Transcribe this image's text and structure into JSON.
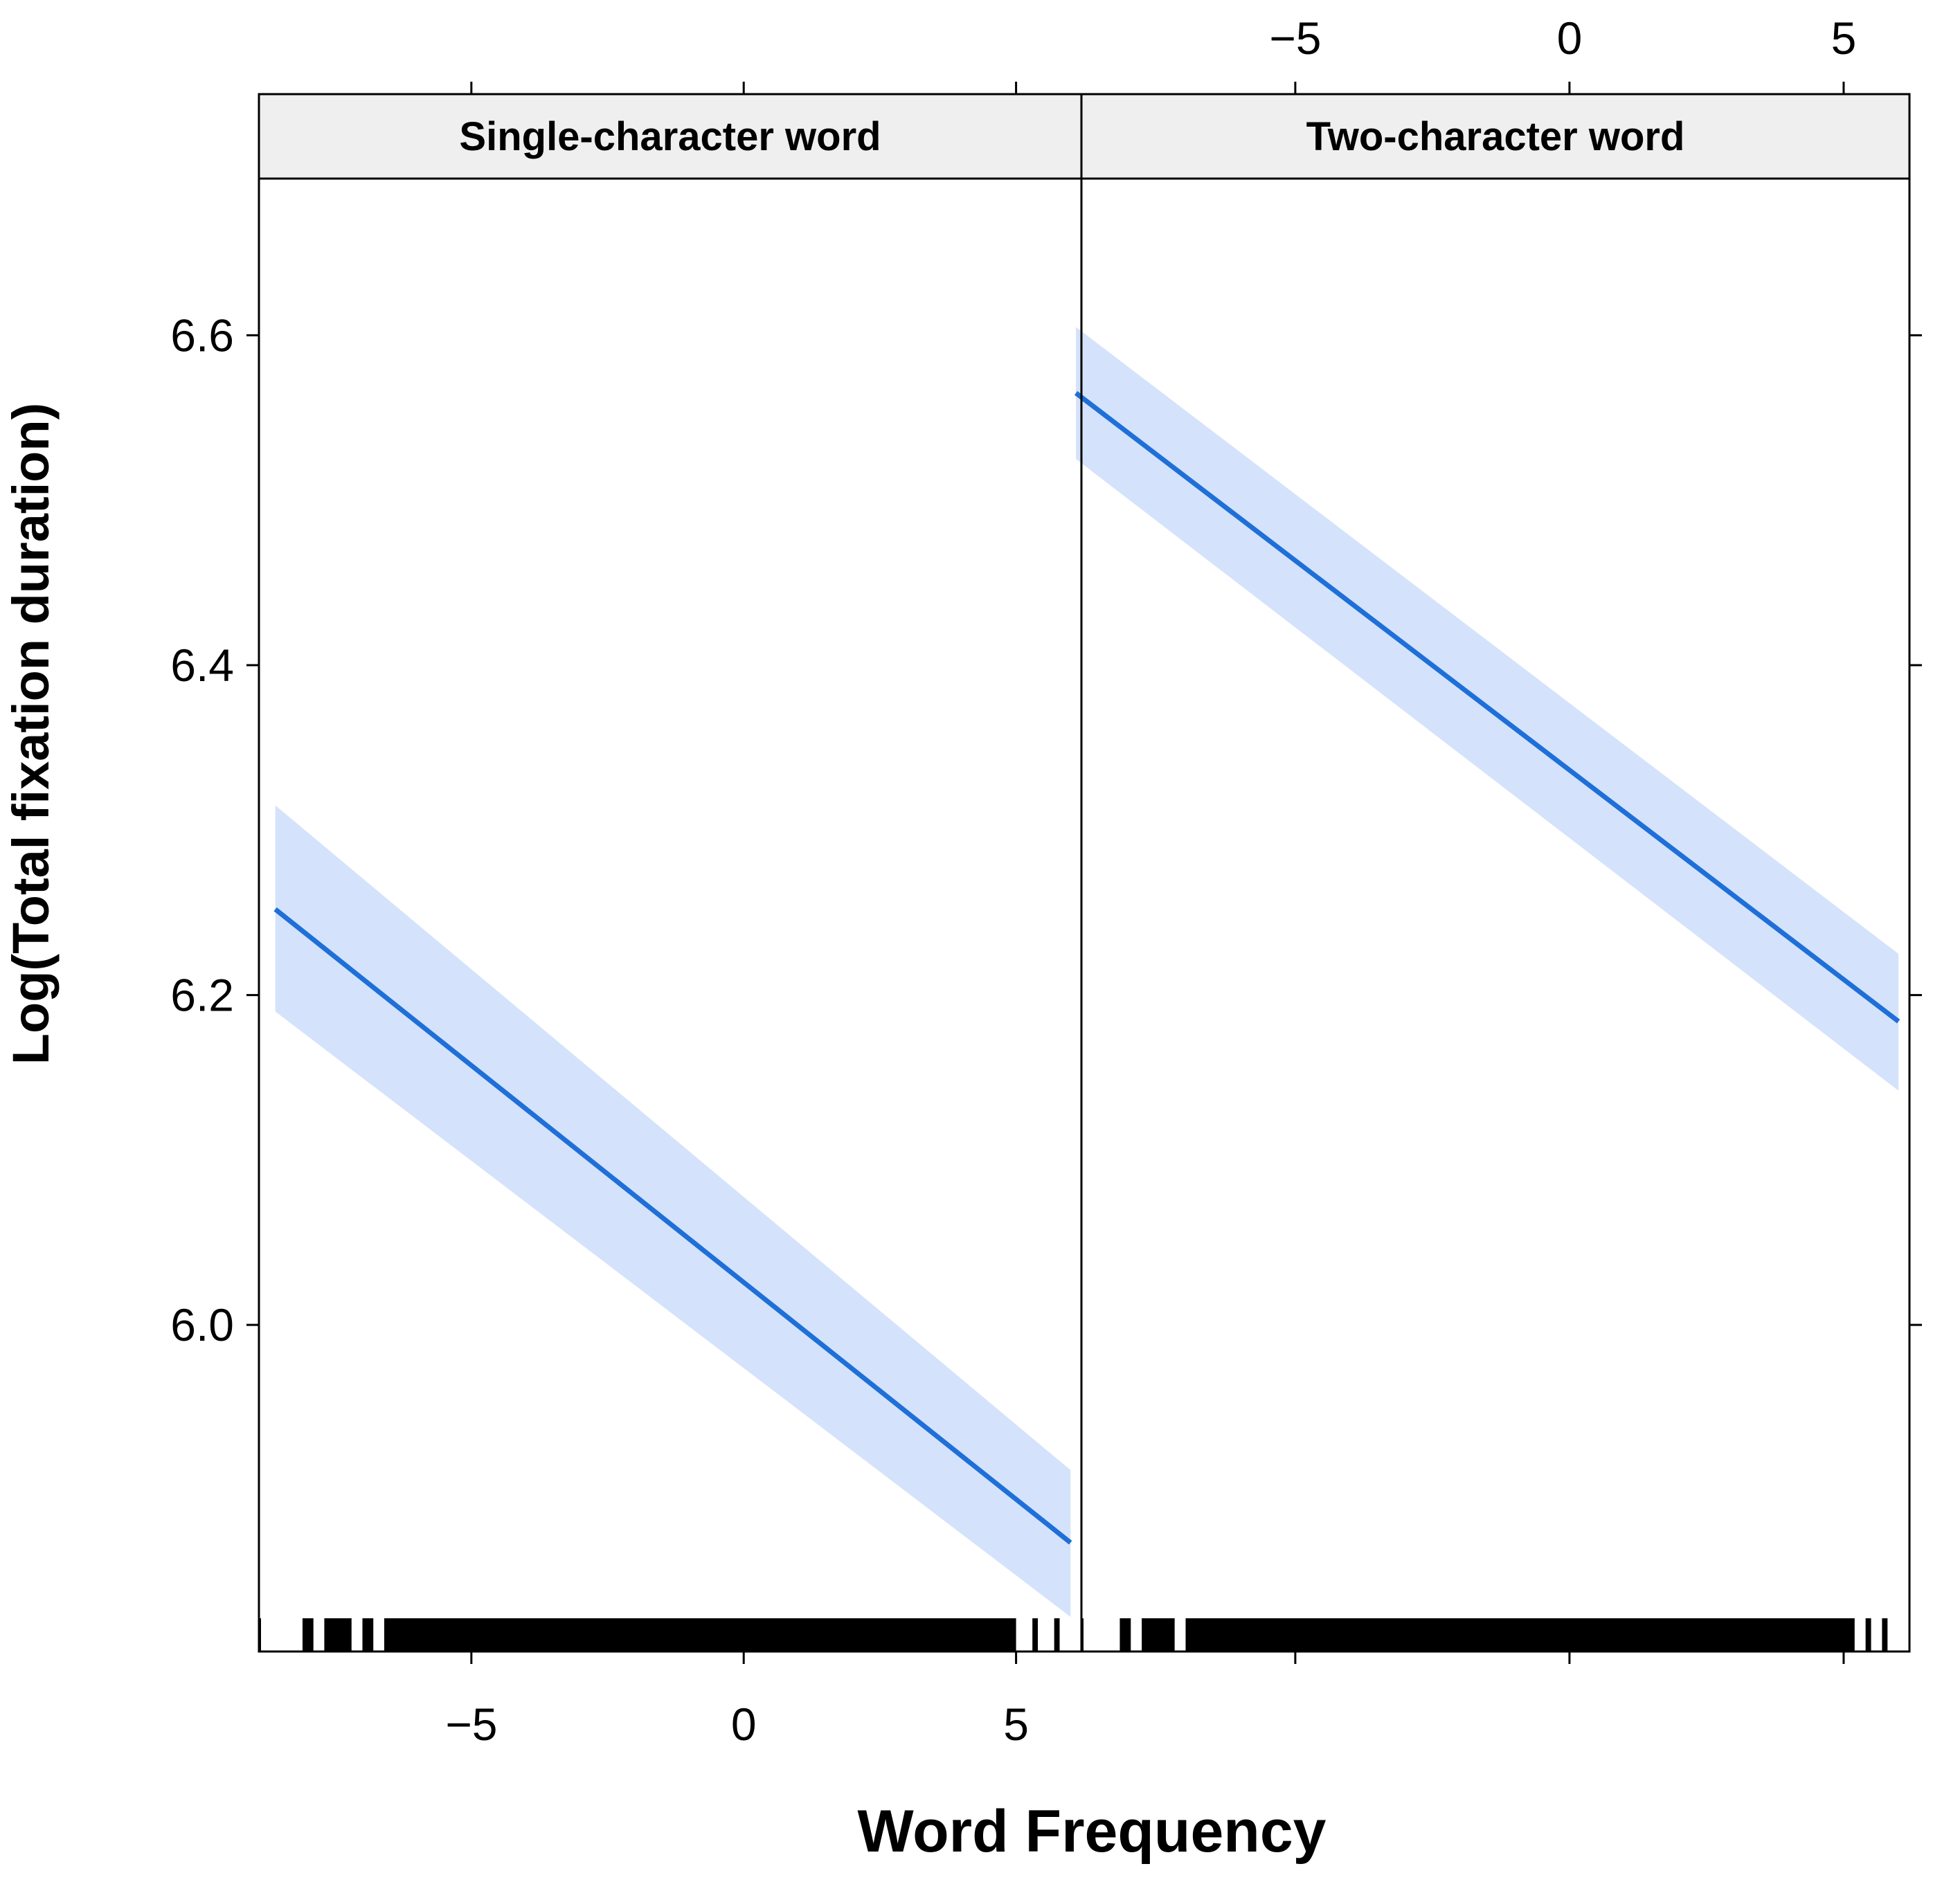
{
  "chart_data": {
    "type": "line",
    "ylabel": "Log(Total fixation duration)",
    "xlabel": "Word Frequency",
    "xlim": [
      -8.9,
      6.2
    ],
    "ylim": [
      5.802,
      6.695
    ],
    "y_ticks": [
      "6.0",
      "6.2",
      "6.4",
      "6.6"
    ],
    "y_tick_values": [
      6.0,
      6.2,
      6.4,
      6.6
    ],
    "x_ticks": [
      "−5",
      "0",
      "5"
    ],
    "x_tick_values": [
      -5,
      0,
      5
    ],
    "grid": false,
    "colors": {
      "line": "#1f6fd8",
      "band": "#d4e3fb",
      "rug": "#000000",
      "strip": "#efefef"
    },
    "panels": [
      {
        "strip": "Single-character word",
        "line": {
          "x": [
            -8.6,
            6.0
          ],
          "y": [
            6.252,
            5.868
          ]
        },
        "ci_upper": {
          "x": [
            -8.6,
            6.0
          ],
          "y": [
            6.315,
            5.912
          ]
        },
        "ci_lower": {
          "x": [
            -8.6,
            6.0
          ],
          "y": [
            6.19,
            5.823
          ]
        },
        "rug": [
          [
            -9.0,
            -8.9
          ],
          [
            -8.1,
            -7.9
          ],
          [
            -7.7,
            -7.2
          ],
          [
            -7.0,
            -6.8
          ],
          [
            -6.6,
            5.0
          ],
          [
            5.3,
            5.4
          ],
          [
            5.7,
            5.8
          ]
        ]
      },
      {
        "strip": "Two-character word",
        "line": {
          "x": [
            -9.0,
            6.0
          ],
          "y": [
            6.565,
            6.184
          ]
        },
        "ci_upper": {
          "x": [
            -9.0,
            6.0
          ],
          "y": [
            6.605,
            6.225
          ]
        },
        "ci_lower": {
          "x": [
            -9.0,
            6.0
          ],
          "y": [
            6.525,
            6.142
          ]
        },
        "rug": [
          [
            -9.1,
            -8.9
          ],
          [
            -8.2,
            -8.0
          ],
          [
            -7.8,
            -7.2
          ],
          [
            -7.0,
            5.2
          ],
          [
            5.4,
            5.5
          ],
          [
            5.7,
            5.8
          ]
        ]
      }
    ]
  }
}
